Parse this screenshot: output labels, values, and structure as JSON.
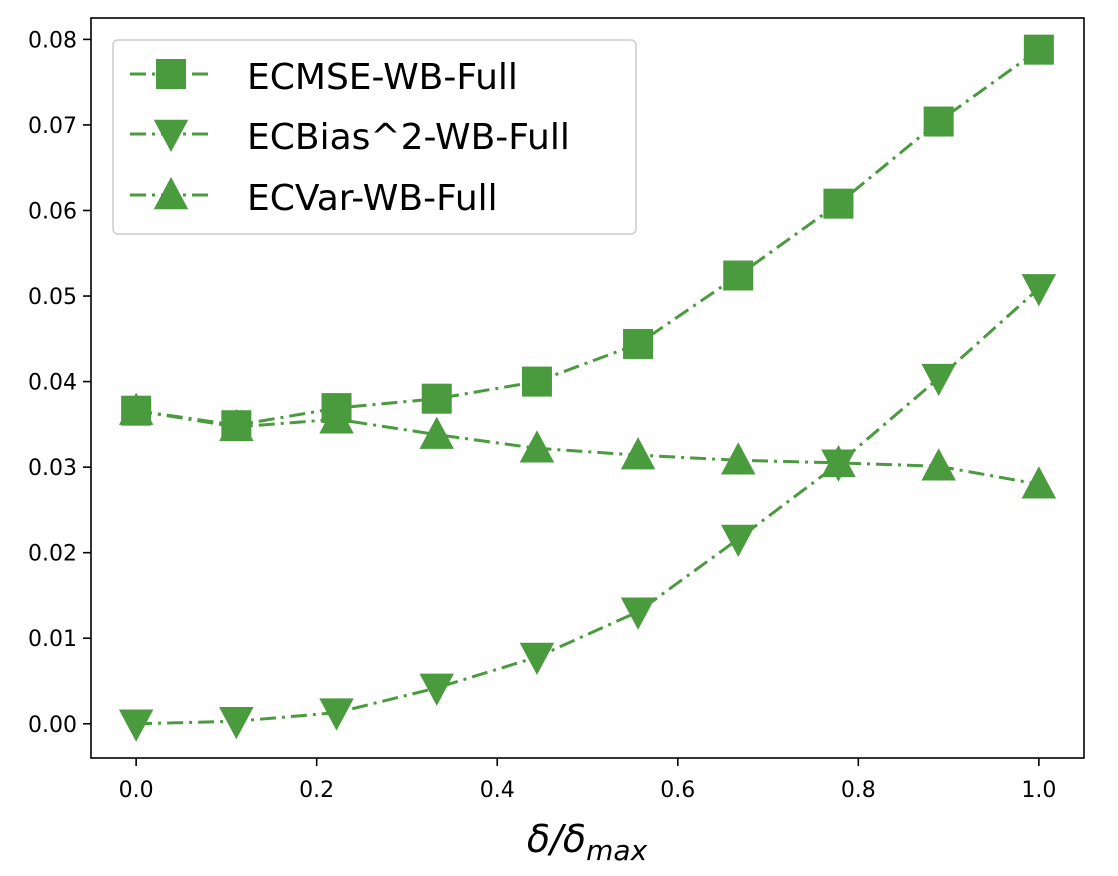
{
  "chart_data": {
    "type": "line",
    "title": "",
    "xlabel": "δ/δ",
    "xlabel_subscript": "max",
    "ylabel": "",
    "xlim": [
      -0.05,
      1.05
    ],
    "ylim": [
      -0.004,
      0.0825
    ],
    "xticks": [
      0.0,
      0.2,
      0.4,
      0.6,
      0.8,
      1.0
    ],
    "xtick_labels": [
      "0.0",
      "0.2",
      "0.4",
      "0.6",
      "0.8",
      "1.0"
    ],
    "yticks": [
      0.0,
      0.01,
      0.02,
      0.03,
      0.04,
      0.05,
      0.06,
      0.07,
      0.08
    ],
    "ytick_labels": [
      "0.00",
      "0.01",
      "0.02",
      "0.03",
      "0.04",
      "0.05",
      "0.06",
      "0.07",
      "0.08"
    ],
    "grid": false,
    "legend_position": "upper-left",
    "x": [
      0.0,
      0.111,
      0.222,
      0.333,
      0.444,
      0.556,
      0.667,
      0.778,
      0.889,
      1.0
    ],
    "series": [
      {
        "name": "ECMSE-WB-Full",
        "marker": "square",
        "line_style": "dash-dot",
        "color": "#4a9a3e",
        "values": [
          0.0366,
          0.0349,
          0.0369,
          0.038,
          0.04,
          0.0444,
          0.0524,
          0.0608,
          0.0704,
          0.0788
        ]
      },
      {
        "name": "ECBias^2-WB-Full",
        "marker": "triangle-down",
        "line_style": "dash-dot",
        "color": "#4a9a3e",
        "values": [
          0.0,
          0.0003,
          0.0013,
          0.0042,
          0.0078,
          0.0131,
          0.0216,
          0.0304,
          0.0404,
          0.0509
        ]
      },
      {
        "name": "ECVar-WB-Full",
        "marker": "triangle-up",
        "line_style": "dash-dot",
        "color": "#4a9a3e",
        "values": [
          0.0366,
          0.0347,
          0.0356,
          0.0338,
          0.0322,
          0.0314,
          0.0308,
          0.0305,
          0.0301,
          0.028
        ]
      }
    ]
  }
}
